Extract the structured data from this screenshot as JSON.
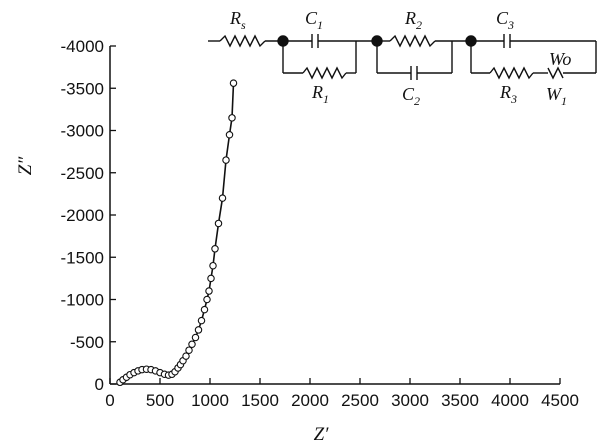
{
  "chart_data": {
    "type": "scatter",
    "title": "",
    "xlabel": "Z′",
    "ylabel": "Z″",
    "xlim": [
      0,
      4500
    ],
    "ylim": [
      0,
      -4000
    ],
    "x_ticks": [
      "0",
      "500",
      "1000",
      "1500",
      "2000",
      "2500",
      "3000",
      "3500",
      "4000",
      "4500"
    ],
    "y_ticks": [
      "0",
      "-500",
      "-1000",
      "-1500",
      "-2000",
      "-2500",
      "-3000",
      "-3500",
      "-4000"
    ],
    "grid": false,
    "series": [
      {
        "marker": "open-circle",
        "line": "solid",
        "x": [
          100,
          130,
          165,
          200,
          240,
          280,
          320,
          365,
          410,
          455,
          500,
          545,
          585,
          620,
          650,
          680,
          705,
          730,
          760,
          790,
          820,
          855,
          885,
          915,
          945,
          970,
          990,
          1010,
          1030,
          1050,
          1085,
          1125,
          1160,
          1195,
          1220,
          1235
        ],
        "y": [
          -20,
          -50,
          -80,
          -110,
          -135,
          -155,
          -170,
          -175,
          -170,
          -155,
          -135,
          -115,
          -105,
          -115,
          -145,
          -190,
          -230,
          -275,
          -330,
          -400,
          -470,
          -550,
          -640,
          -750,
          -880,
          -1000,
          -1100,
          -1250,
          -1400,
          -1600,
          -1900,
          -2200,
          -2650,
          -2950,
          -3150,
          -3560
        ]
      }
    ]
  },
  "circuit": {
    "labels": {
      "rs": "R",
      "rs_sub": "s",
      "c1": "C",
      "c1_sub": "1",
      "r1": "R",
      "r1_sub": "1",
      "r2": "R",
      "r2_sub": "2",
      "c2": "C",
      "c2_sub": "2",
      "c3": "C",
      "c3_sub": "3",
      "r3": "R",
      "r3_sub": "3",
      "w1": "W",
      "w1_sub": "1",
      "wo": "Wo"
    }
  }
}
